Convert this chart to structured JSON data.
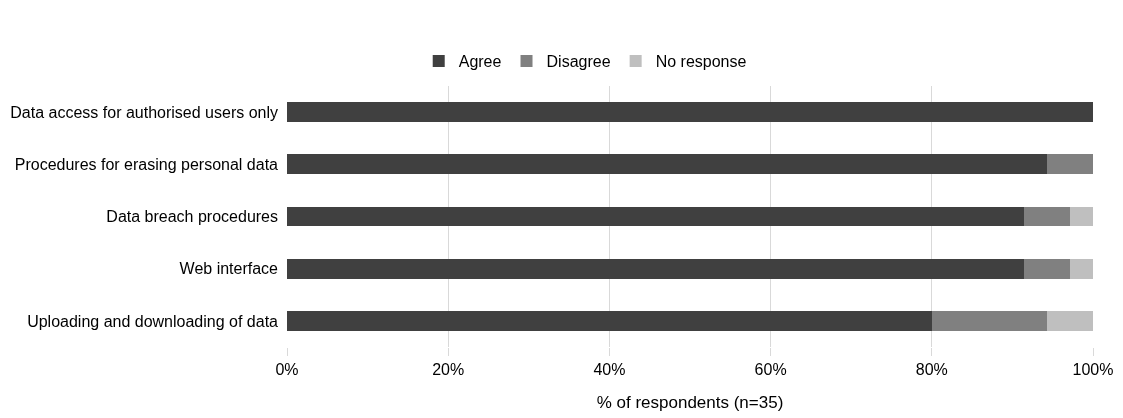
{
  "chart_data": {
    "type": "bar",
    "orientation": "horizontal",
    "stacked": true,
    "categories": [
      "Data access for authorised users only",
      "Procedures for erasing personal data",
      "Data breach procedures",
      "Web interface",
      "Uploading and downloading of data"
    ],
    "series": [
      {
        "name": "Agree",
        "color": "#404040",
        "values": [
          100,
          94.3,
          91.4,
          91.4,
          80
        ]
      },
      {
        "name": "Disagree",
        "color": "#808080",
        "values": [
          0,
          5.7,
          5.7,
          5.7,
          14.3
        ]
      },
      {
        "name": "No response",
        "color": "#bfbfbf",
        "values": [
          0,
          0,
          2.9,
          2.9,
          5.7
        ]
      }
    ],
    "xlabel": "% of respondents (n=35)",
    "xlim": [
      0,
      100
    ],
    "xticks": [
      {
        "value": 0,
        "label": "0%"
      },
      {
        "value": 20,
        "label": "20%"
      },
      {
        "value": 40,
        "label": "40%"
      },
      {
        "value": 60,
        "label": "60%"
      },
      {
        "value": 80,
        "label": "80%"
      },
      {
        "value": 100,
        "label": "100%"
      }
    ],
    "grid": "x",
    "legend": "top"
  }
}
